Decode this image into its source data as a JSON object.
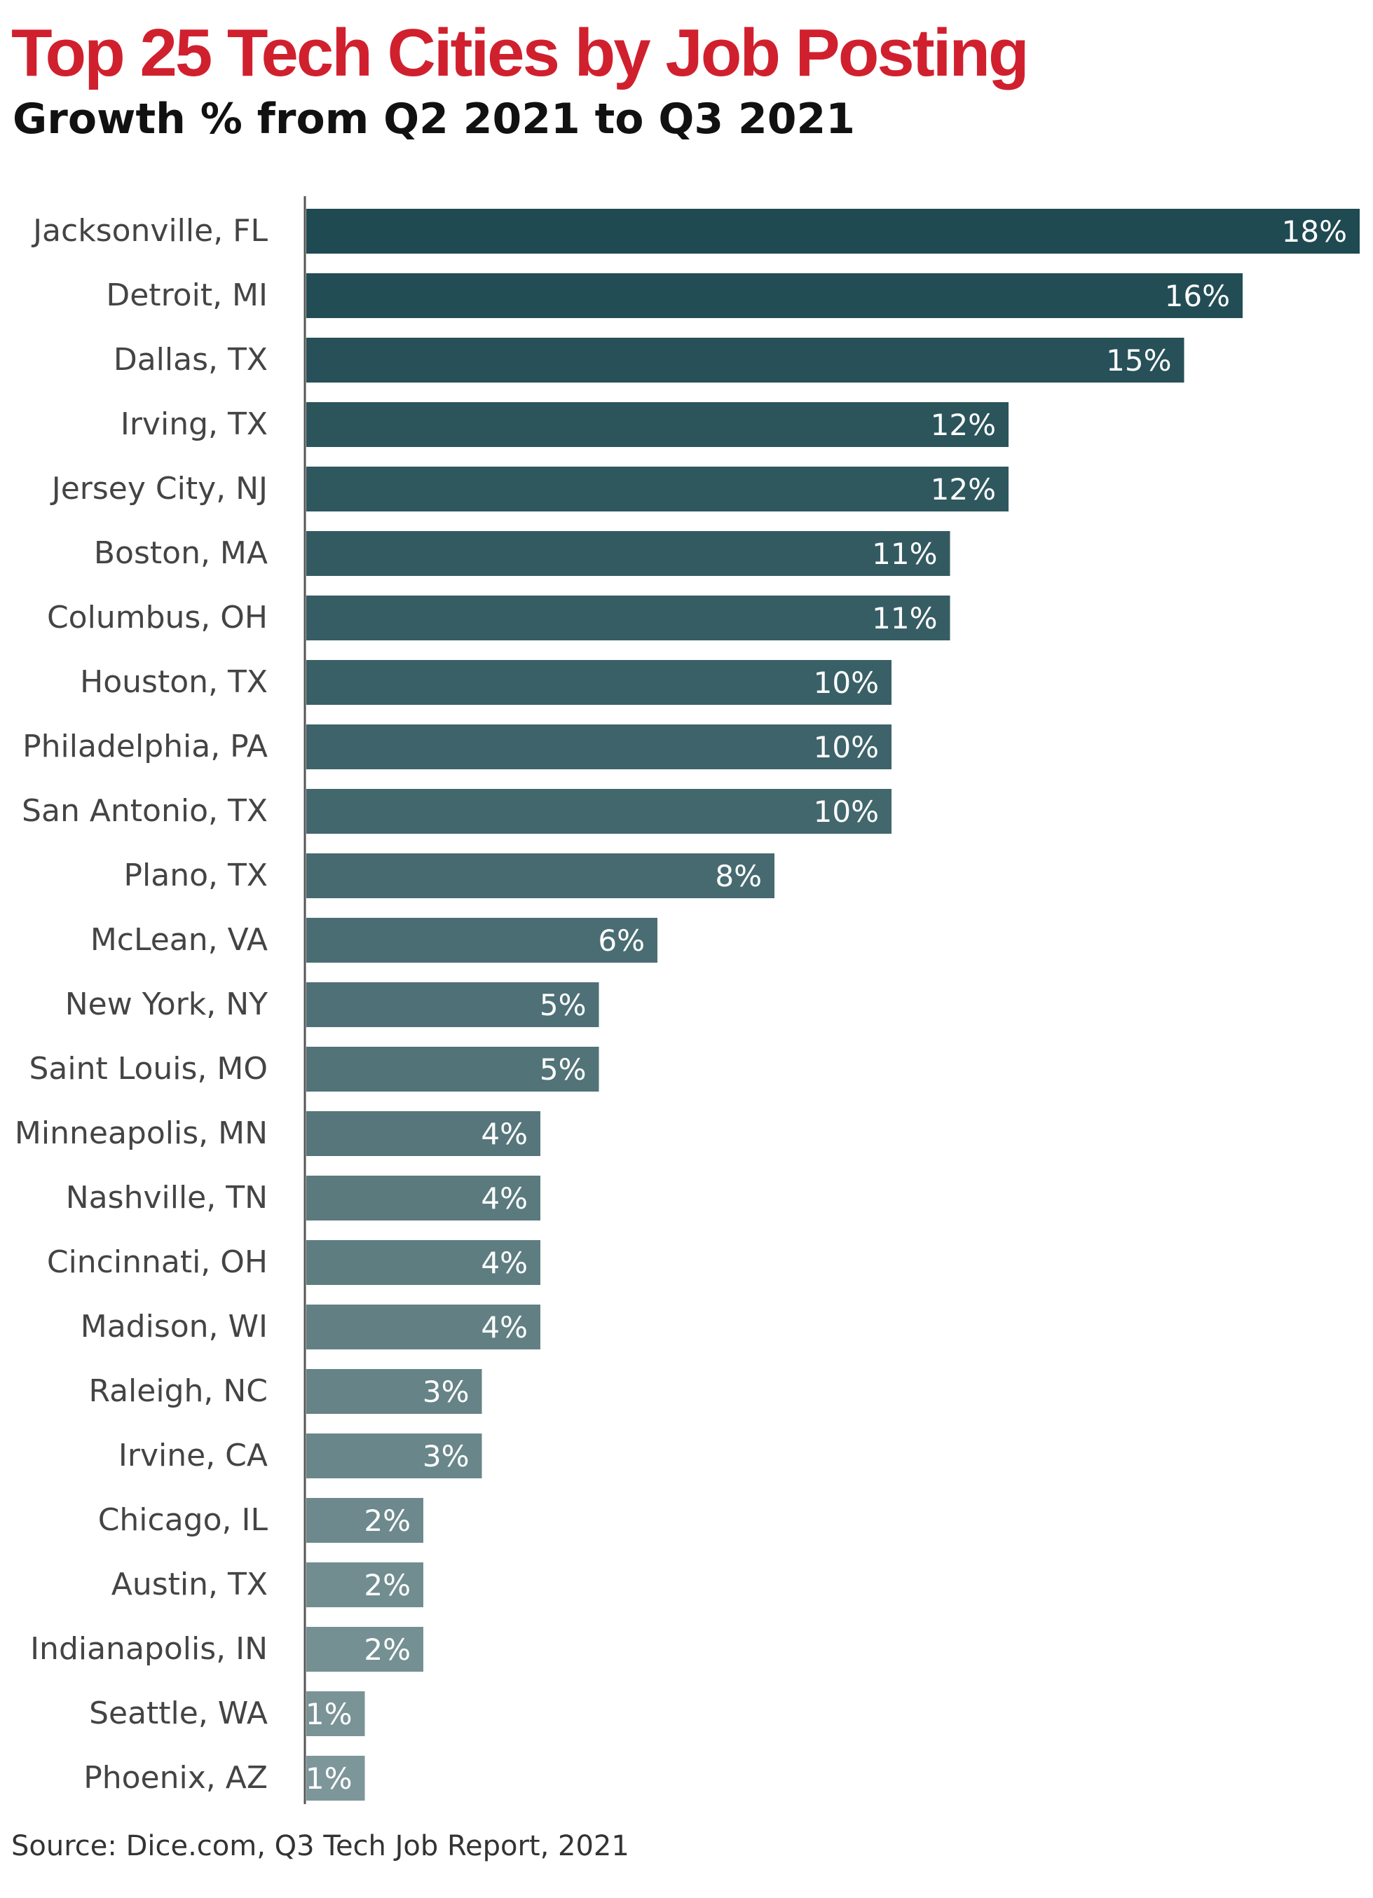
{
  "header": {
    "title": "Top 25 Tech Cities by Job Posting",
    "subtitle": "Growth % from Q2 2021 to Q3 2021",
    "title_color": "#D0202E"
  },
  "footer": {
    "source": "Source: Dice.com, Q3 Tech Job Report, 2021"
  },
  "chart_data": {
    "type": "bar",
    "orientation": "horizontal",
    "title": "Top 25 Tech Cities by Job Posting",
    "subtitle": "Growth % from Q2 2021 to Q3 2021",
    "xlabel": "",
    "ylabel": "",
    "value_suffix": "%",
    "xlim": [
      0,
      18
    ],
    "grid": false,
    "categories": [
      "Jacksonville, FL",
      "Detroit, MI",
      "Dallas, TX",
      "Irving, TX",
      "Jersey City, NJ",
      "Boston, MA",
      "Columbus, OH",
      "Houston, TX",
      "Philadelphia, PA",
      "San Antonio, TX",
      "Plano, TX",
      "McLean, VA",
      "New York, NY",
      "Saint Louis, MO",
      "Minneapolis, MN",
      "Nashville, TN",
      "Cincinnati, OH",
      "Madison, WI",
      "Raleigh, NC",
      "Irvine, CA",
      "Chicago, IL",
      "Austin, TX",
      "Indianapolis, IN",
      "Seattle, WA",
      "Phoenix, AZ"
    ],
    "values": [
      18,
      16,
      15,
      12,
      12,
      11,
      11,
      10,
      10,
      10,
      8,
      6,
      5,
      5,
      4,
      4,
      4,
      4,
      3,
      3,
      2,
      2,
      2,
      1,
      1
    ],
    "labels": [
      "18%",
      "16%",
      "15%",
      "12%",
      "12%",
      "11%",
      "11%",
      "10%",
      "10%",
      "10%",
      "8%",
      "6%",
      "5%",
      "5%",
      "4%",
      "4%",
      "4%",
      "4%",
      "3%",
      "3%",
      "2%",
      "2%",
      "2%",
      "1%",
      "1%"
    ],
    "colors": {
      "darkest": "#1F4A52",
      "lightest": "#7D9699",
      "axis": "#555555",
      "category_text": "#444444",
      "value_text": "#FFFFFF"
    }
  }
}
